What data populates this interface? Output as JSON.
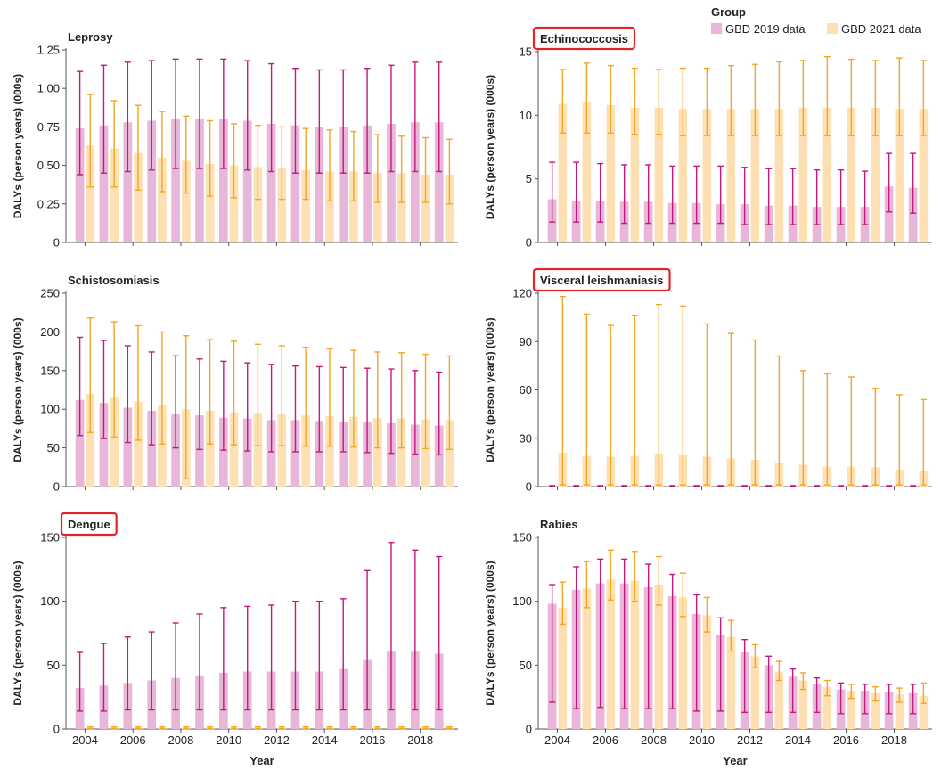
{
  "legend": {
    "title": "Group",
    "entries": [
      {
        "label": "GBD 2019 data",
        "color": "#e8b6d8",
        "error_color": "#c2187f"
      },
      {
        "label": "GBD 2021 data",
        "color": "#fde1b4",
        "error_color": "#f2a623"
      }
    ]
  },
  "x_axis": {
    "title": "Year",
    "tick_labels": [
      "2004",
      "2006",
      "2008",
      "2010",
      "2012",
      "2014",
      "2016",
      "2018"
    ]
  },
  "chart_data": [
    {
      "type": "bar",
      "title": "Leprosy",
      "highlighted": false,
      "ylabel": "DALYs (person years) (000s)",
      "ylim": [
        0,
        1.25
      ],
      "yticks": [
        0,
        0.25,
        0.5,
        0.75,
        1.0,
        1.25
      ],
      "ytick_labels": [
        "0",
        "0.25",
        "0.50",
        "0.75",
        "1.00",
        "1.25"
      ],
      "categories": [
        2004,
        2005,
        2006,
        2007,
        2008,
        2009,
        2010,
        2011,
        2012,
        2013,
        2014,
        2015,
        2016,
        2017,
        2018,
        2019
      ],
      "series": [
        {
          "name": "GBD 2019 data",
          "values": [
            0.74,
            0.76,
            0.78,
            0.79,
            0.8,
            0.8,
            0.8,
            0.79,
            0.77,
            0.76,
            0.75,
            0.75,
            0.76,
            0.77,
            0.78,
            0.78
          ],
          "lower": [
            0.44,
            0.45,
            0.46,
            0.47,
            0.48,
            0.48,
            0.48,
            0.47,
            0.46,
            0.45,
            0.45,
            0.45,
            0.45,
            0.46,
            0.46,
            0.46
          ],
          "upper": [
            1.11,
            1.15,
            1.17,
            1.18,
            1.19,
            1.19,
            1.19,
            1.18,
            1.16,
            1.13,
            1.12,
            1.12,
            1.13,
            1.15,
            1.17,
            1.17
          ]
        },
        {
          "name": "GBD 2021 data",
          "values": [
            0.63,
            0.61,
            0.58,
            0.55,
            0.53,
            0.51,
            0.5,
            0.49,
            0.48,
            0.47,
            0.46,
            0.46,
            0.45,
            0.45,
            0.44,
            0.44
          ],
          "lower": [
            0.36,
            0.36,
            0.34,
            0.33,
            0.32,
            0.3,
            0.29,
            0.28,
            0.28,
            0.28,
            0.27,
            0.27,
            0.26,
            0.26,
            0.26,
            0.25
          ],
          "upper": [
            0.96,
            0.92,
            0.89,
            0.85,
            0.82,
            0.79,
            0.77,
            0.76,
            0.75,
            0.74,
            0.73,
            0.72,
            0.7,
            0.69,
            0.68,
            0.67
          ]
        }
      ]
    },
    {
      "type": "bar",
      "title": "Echinococcosis",
      "highlighted": true,
      "ylabel": "DALYs (person years) (000s)",
      "ylim": [
        0,
        15
      ],
      "yticks": [
        0,
        5,
        10,
        15
      ],
      "ytick_labels": [
        "0",
        "5",
        "10",
        "15"
      ],
      "categories": [
        2004,
        2005,
        2006,
        2007,
        2008,
        2009,
        2010,
        2011,
        2012,
        2013,
        2014,
        2015,
        2016,
        2017,
        2018,
        2019
      ],
      "series": [
        {
          "name": "GBD 2019 data",
          "values": [
            3.4,
            3.3,
            3.3,
            3.2,
            3.2,
            3.1,
            3.1,
            3.0,
            3.0,
            2.9,
            2.9,
            2.8,
            2.8,
            2.8,
            4.4,
            4.3
          ],
          "lower": [
            1.6,
            1.6,
            1.6,
            1.5,
            1.5,
            1.5,
            1.5,
            1.5,
            1.4,
            1.4,
            1.4,
            1.4,
            1.4,
            1.4,
            2.4,
            2.3
          ],
          "upper": [
            6.3,
            6.3,
            6.2,
            6.1,
            6.1,
            6.0,
            6.0,
            6.0,
            5.9,
            5.8,
            5.8,
            5.7,
            5.7,
            5.6,
            7.0,
            7.0
          ]
        },
        {
          "name": "GBD 2021 data",
          "values": [
            10.9,
            11.0,
            10.8,
            10.6,
            10.6,
            10.5,
            10.5,
            10.5,
            10.5,
            10.5,
            10.6,
            10.6,
            10.6,
            10.6,
            10.5,
            10.5
          ],
          "lower": [
            8.6,
            8.6,
            8.6,
            8.5,
            8.5,
            8.4,
            8.4,
            8.4,
            8.4,
            8.4,
            8.4,
            8.4,
            8.4,
            8.4,
            8.4,
            8.4
          ],
          "upper": [
            13.6,
            14.1,
            13.9,
            13.7,
            13.6,
            13.7,
            13.7,
            13.9,
            14.0,
            14.2,
            14.3,
            14.6,
            14.4,
            14.3,
            14.5,
            14.3
          ]
        }
      ]
    },
    {
      "type": "bar",
      "title": "Schistosomiasis",
      "highlighted": false,
      "ylabel": "DALYs (person years) (000s)",
      "ylim": [
        0,
        250
      ],
      "yticks": [
        0,
        50,
        100,
        150,
        200,
        250
      ],
      "ytick_labels": [
        "0",
        "50",
        "100",
        "150",
        "200",
        "250"
      ],
      "categories": [
        2004,
        2005,
        2006,
        2007,
        2008,
        2009,
        2010,
        2011,
        2012,
        2013,
        2014,
        2015,
        2016,
        2017,
        2018,
        2019
      ],
      "series": [
        {
          "name": "GBD 2019 data",
          "values": [
            112,
            108,
            102,
            98,
            94,
            92,
            89,
            88,
            86,
            86,
            85,
            84,
            83,
            82,
            80,
            79
          ],
          "lower": [
            66,
            62,
            57,
            54,
            50,
            48,
            47,
            46,
            45,
            45,
            45,
            45,
            44,
            43,
            42,
            41
          ],
          "upper": [
            193,
            189,
            182,
            174,
            169,
            165,
            162,
            160,
            158,
            156,
            155,
            154,
            153,
            152,
            150,
            148
          ]
        },
        {
          "name": "GBD 2021 data",
          "values": [
            120,
            115,
            110,
            105,
            100,
            98,
            96,
            95,
            94,
            92,
            91,
            90,
            89,
            88,
            87,
            86
          ],
          "lower": [
            70,
            64,
            60,
            55,
            10,
            55,
            54,
            53,
            53,
            52,
            52,
            51,
            50,
            50,
            49,
            48
          ],
          "upper": [
            218,
            213,
            208,
            200,
            195,
            190,
            188,
            184,
            182,
            180,
            178,
            176,
            174,
            173,
            171,
            169
          ]
        }
      ]
    },
    {
      "type": "bar",
      "title": "Visceral leishmaniasis",
      "highlighted": true,
      "ylabel": "DALYs (person years) (000s)",
      "ylim": [
        0,
        120
      ],
      "yticks": [
        0,
        30,
        60,
        90,
        120
      ],
      "ytick_labels": [
        "0",
        "30",
        "60",
        "90",
        "120"
      ],
      "categories": [
        2004,
        2005,
        2006,
        2007,
        2008,
        2009,
        2010,
        2011,
        2012,
        2013,
        2014,
        2015,
        2016,
        2017,
        2018,
        2019
      ],
      "series": [
        {
          "name": "GBD 2019 data",
          "values": [
            0.3,
            0.3,
            0.3,
            0.3,
            0.3,
            0.3,
            0.3,
            0.3,
            0.3,
            0.3,
            0.3,
            0.3,
            0.3,
            0.3,
            0.3,
            0.3
          ],
          "lower": [
            0.1,
            0.1,
            0.1,
            0.1,
            0.1,
            0.1,
            0.1,
            0.1,
            0.1,
            0.1,
            0.1,
            0.1,
            0.1,
            0.1,
            0.1,
            0.1
          ],
          "upper": [
            0.6,
            0.6,
            0.6,
            0.6,
            0.6,
            0.6,
            0.6,
            0.6,
            0.6,
            0.6,
            0.6,
            0.6,
            0.6,
            0.6,
            0.6,
            0.6
          ]
        },
        {
          "name": "GBD 2021 data",
          "values": [
            21,
            19,
            18.5,
            19,
            20.5,
            20,
            18.5,
            17.5,
            16.5,
            14.5,
            13.5,
            12.5,
            12.5,
            12,
            10.5,
            10
          ],
          "lower": [
            1,
            1,
            1,
            1,
            1,
            1,
            1,
            1,
            1,
            1,
            1,
            1,
            1,
            1,
            1,
            1
          ],
          "upper": [
            118,
            107,
            100,
            106,
            113,
            112,
            101,
            95,
            91,
            81,
            72,
            70,
            68,
            61,
            57,
            54
          ]
        }
      ]
    },
    {
      "type": "bar",
      "title": "Dengue",
      "highlighted": true,
      "ylabel": "DALYs (person years) (000s)",
      "ylim": [
        0,
        150
      ],
      "yticks": [
        0,
        50,
        100,
        150
      ],
      "ytick_labels": [
        "0",
        "50",
        "100",
        "150"
      ],
      "categories": [
        2004,
        2005,
        2006,
        2007,
        2008,
        2009,
        2010,
        2011,
        2012,
        2013,
        2014,
        2015,
        2016,
        2017,
        2018,
        2019
      ],
      "series": [
        {
          "name": "GBD 2019 data",
          "values": [
            32,
            34,
            36,
            38,
            40,
            42,
            44,
            45,
            45,
            45,
            45,
            47,
            54,
            61,
            61,
            59
          ],
          "lower": [
            14,
            14,
            15,
            15,
            15,
            15,
            15,
            15,
            15,
            15,
            15,
            15,
            15,
            15,
            15,
            15
          ],
          "upper": [
            60,
            67,
            72,
            76,
            83,
            90,
            95,
            96,
            97,
            100,
            100,
            102,
            124,
            146,
            140,
            135
          ]
        },
        {
          "name": "GBD 2021 data",
          "values": [
            0.8,
            0.8,
            0.8,
            0.8,
            0.8,
            0.8,
            0.8,
            0.8,
            0.8,
            0.8,
            0.8,
            0.8,
            0.8,
            0.8,
            0.8,
            0.8
          ],
          "lower": [
            0.3,
            0.3,
            0.3,
            0.3,
            0.3,
            0.3,
            0.3,
            0.3,
            0.3,
            0.3,
            0.3,
            0.3,
            0.3,
            0.3,
            0.3,
            0.3
          ],
          "upper": [
            1.6,
            1.6,
            1.6,
            1.6,
            1.6,
            1.6,
            1.6,
            1.6,
            1.6,
            1.6,
            1.6,
            1.6,
            1.6,
            1.6,
            1.6,
            1.6
          ]
        }
      ]
    },
    {
      "type": "bar",
      "title": "Rabies",
      "highlighted": false,
      "ylabel": "DALYs (person years) (000s)",
      "ylim": [
        0,
        150
      ],
      "yticks": [
        0,
        50,
        100,
        150
      ],
      "ytick_labels": [
        "0",
        "50",
        "100",
        "150"
      ],
      "categories": [
        2004,
        2005,
        2006,
        2007,
        2008,
        2009,
        2010,
        2011,
        2012,
        2013,
        2014,
        2015,
        2016,
        2017,
        2018,
        2019
      ],
      "series": [
        {
          "name": "GBD 2019 data",
          "values": [
            98,
            109,
            114,
            114,
            111,
            104,
            90,
            74,
            60,
            50,
            41,
            35,
            31,
            30,
            29,
            28
          ],
          "lower": [
            21,
            16,
            17,
            16,
            16,
            16,
            14,
            14,
            13,
            13,
            13,
            13,
            12,
            12,
            12,
            12
          ],
          "upper": [
            113,
            127,
            133,
            133,
            129,
            121,
            105,
            87,
            70,
            57,
            47,
            40,
            36,
            35,
            35,
            35
          ]
        },
        {
          "name": "GBD 2021 data",
          "values": [
            95,
            110,
            117,
            116,
            113,
            103,
            89,
            72,
            57,
            45,
            38,
            33,
            30,
            28,
            27,
            26
          ],
          "lower": [
            82,
            95,
            101,
            100,
            97,
            88,
            76,
            61,
            48,
            38,
            31,
            26,
            24,
            22,
            21,
            20
          ],
          "upper": [
            115,
            131,
            140,
            139,
            135,
            122,
            103,
            85,
            66,
            53,
            44,
            38,
            35,
            33,
            32,
            36
          ]
        }
      ]
    }
  ]
}
